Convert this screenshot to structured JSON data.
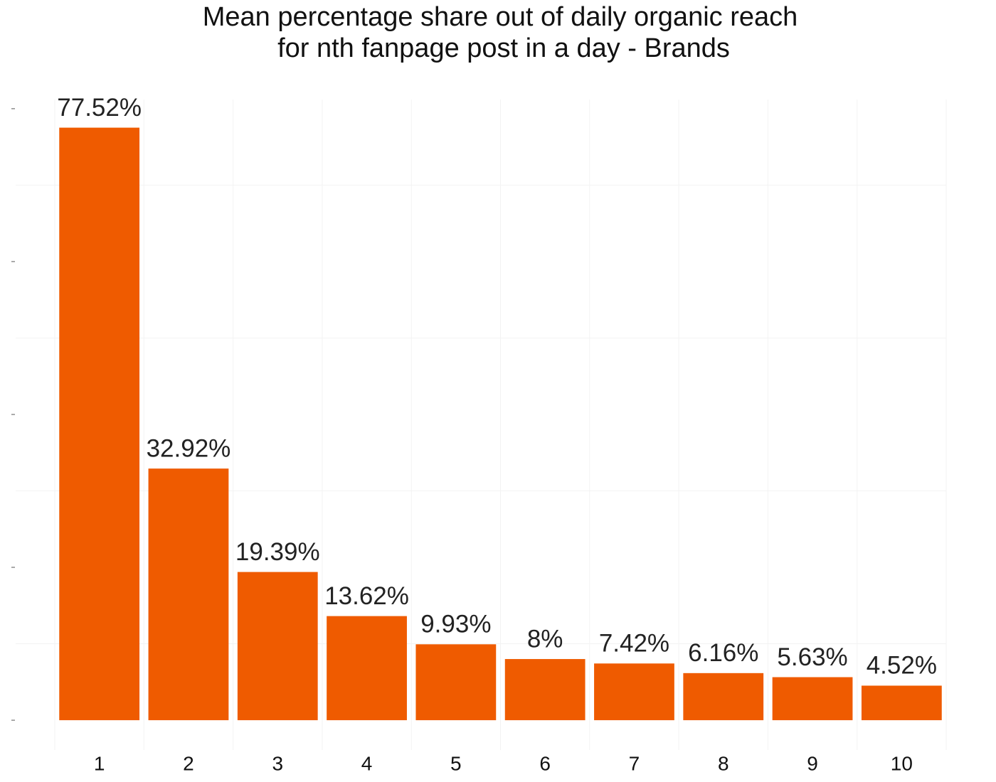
{
  "chart_data": {
    "type": "bar",
    "title": [
      "Mean percentage share out of daily organic reach",
      "for nth fanpage post in a day - Brands"
    ],
    "categories": [
      "1",
      "2",
      "3",
      "4",
      "5",
      "6",
      "7",
      "8",
      "9",
      "10"
    ],
    "values": [
      77.52,
      32.92,
      19.39,
      13.62,
      9.93,
      8,
      7.42,
      6.16,
      5.63,
      4.52
    ],
    "value_labels": [
      "77.52%",
      "32.92%",
      "19.39%",
      "13.62%",
      "9.93%",
      "8%",
      "7.42%",
      "6.16%",
      "5.63%",
      "4.52%"
    ],
    "color": "#ef5b00",
    "ylim": [
      -3.9,
      81.2
    ],
    "yticks": [
      0,
      20,
      40,
      60,
      80
    ],
    "minor_yticks": [
      10,
      30,
      50,
      70
    ],
    "grid": true
  }
}
